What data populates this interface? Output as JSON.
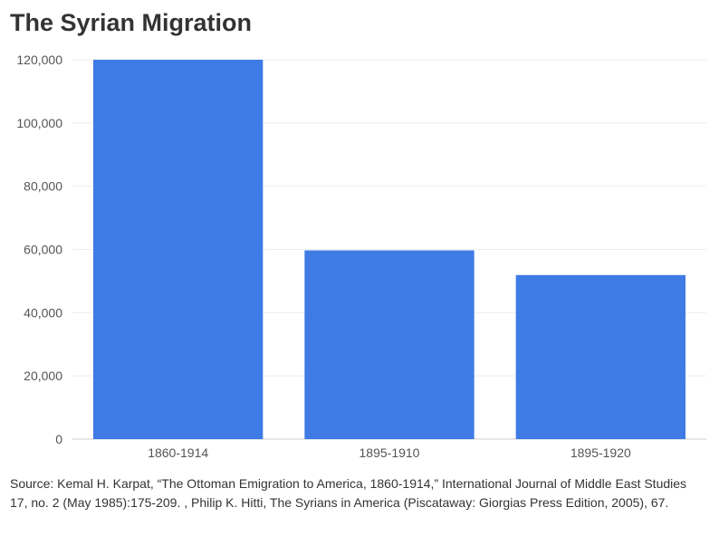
{
  "chart_data": {
    "type": "bar",
    "title": "The Syrian Migration",
    "categories": [
      "1860-1914",
      "1895-1910",
      "1895-1920"
    ],
    "values": [
      120000,
      59700,
      51900
    ],
    "xlabel": "",
    "ylabel": "",
    "ylim": [
      0,
      120000
    ],
    "yticks": [
      0,
      20000,
      40000,
      60000,
      80000,
      100000,
      120000
    ],
    "ytick_labels": [
      "0",
      "20,000",
      "40,000",
      "60,000",
      "80,000",
      "100,000",
      "120,000"
    ],
    "grid": true,
    "color": "#3e7be4"
  },
  "source": "Source: Kemal H. Karpat, “The Ottoman Emigration to America, 1860-1914,” International Journal of Middle East Studies 17, no. 2 (May 1985):175-209. , Philip K. Hitti, The Syrians in America (Piscataway: Giorgias Press Edition, 2005), 67."
}
